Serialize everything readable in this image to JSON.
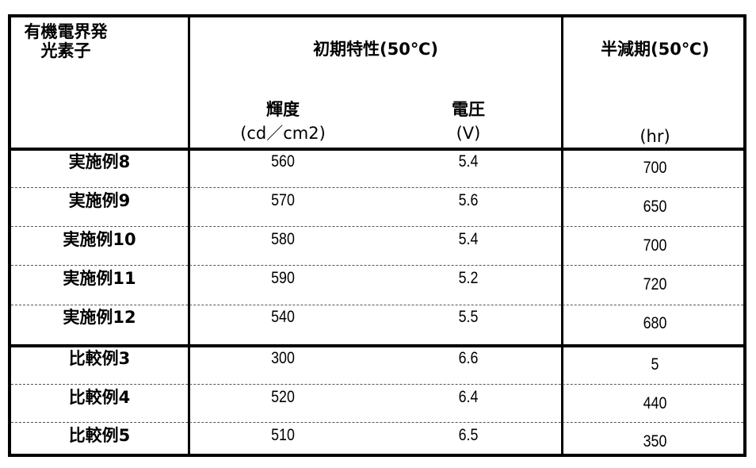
{
  "header": {
    "device": "有機電界発光素子",
    "initial": "初期特性(50℃)",
    "half_life": "半減期(50℃)",
    "luminance": "輝度",
    "luminance_unit": "(cd／cm2)",
    "voltage": "電圧",
    "voltage_unit": "(V)",
    "half_life_unit": "(hr)"
  },
  "rows": [
    {
      "name": "実施例8",
      "luminance": "560",
      "voltage": "5.4",
      "half_life": "700"
    },
    {
      "name": "実施例9",
      "luminance": "570",
      "voltage": "5.6",
      "half_life": "650"
    },
    {
      "name": "実施例10",
      "luminance": "580",
      "voltage": "5.4",
      "half_life": "700"
    },
    {
      "name": "実施例11",
      "luminance": "590",
      "voltage": "5.2",
      "half_life": "720"
    },
    {
      "name": "実施例12",
      "luminance": "540",
      "voltage": "5.5",
      "half_life": "680"
    },
    {
      "name": "比較例3",
      "luminance": "300",
      "voltage": "6.6",
      "half_life": "5"
    },
    {
      "name": "比較例4",
      "luminance": "520",
      "voltage": "6.4",
      "half_life": "440"
    },
    {
      "name": "比較例5",
      "luminance": "510",
      "voltage": "6.5",
      "half_life": "350"
    }
  ]
}
